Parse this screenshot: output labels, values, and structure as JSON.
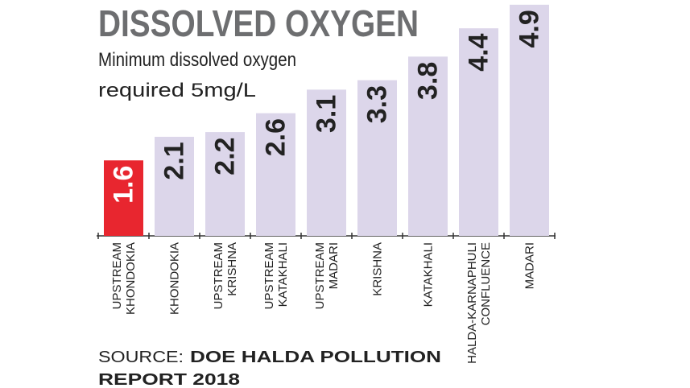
{
  "chart_data": {
    "type": "bar",
    "title": "DISSOLVED OXYGEN",
    "subtitle": [
      "Minimum dissolved oxygen",
      "required 5mg/L"
    ],
    "categories": [
      "UPSTREAM KHONDOKIA",
      "KHONDOKIA",
      "UPSTREAM KRISHNA",
      "UPSTREAM KATAKHALI",
      "UPSTREAM MADARI",
      "KRISHNA",
      "KATAKHALI",
      "HALDA-KARNAPHULI CONFLUENCE",
      "MADARI"
    ],
    "values": [
      1.6,
      2.1,
      2.2,
      2.6,
      3.1,
      3.3,
      3.8,
      4.4,
      4.9
    ],
    "colors": [
      "#e8262f",
      "#dcd6ea",
      "#dcd6ea",
      "#dcd6ea",
      "#dcd6ea",
      "#dcd6ea",
      "#dcd6ea",
      "#dcd6ea",
      "#dcd6ea"
    ],
    "ylim": [
      0,
      5
    ],
    "source_label": "SOURCE:",
    "source": [
      "DOE HALDA POLLUTION",
      "REPORT 2018"
    ]
  }
}
